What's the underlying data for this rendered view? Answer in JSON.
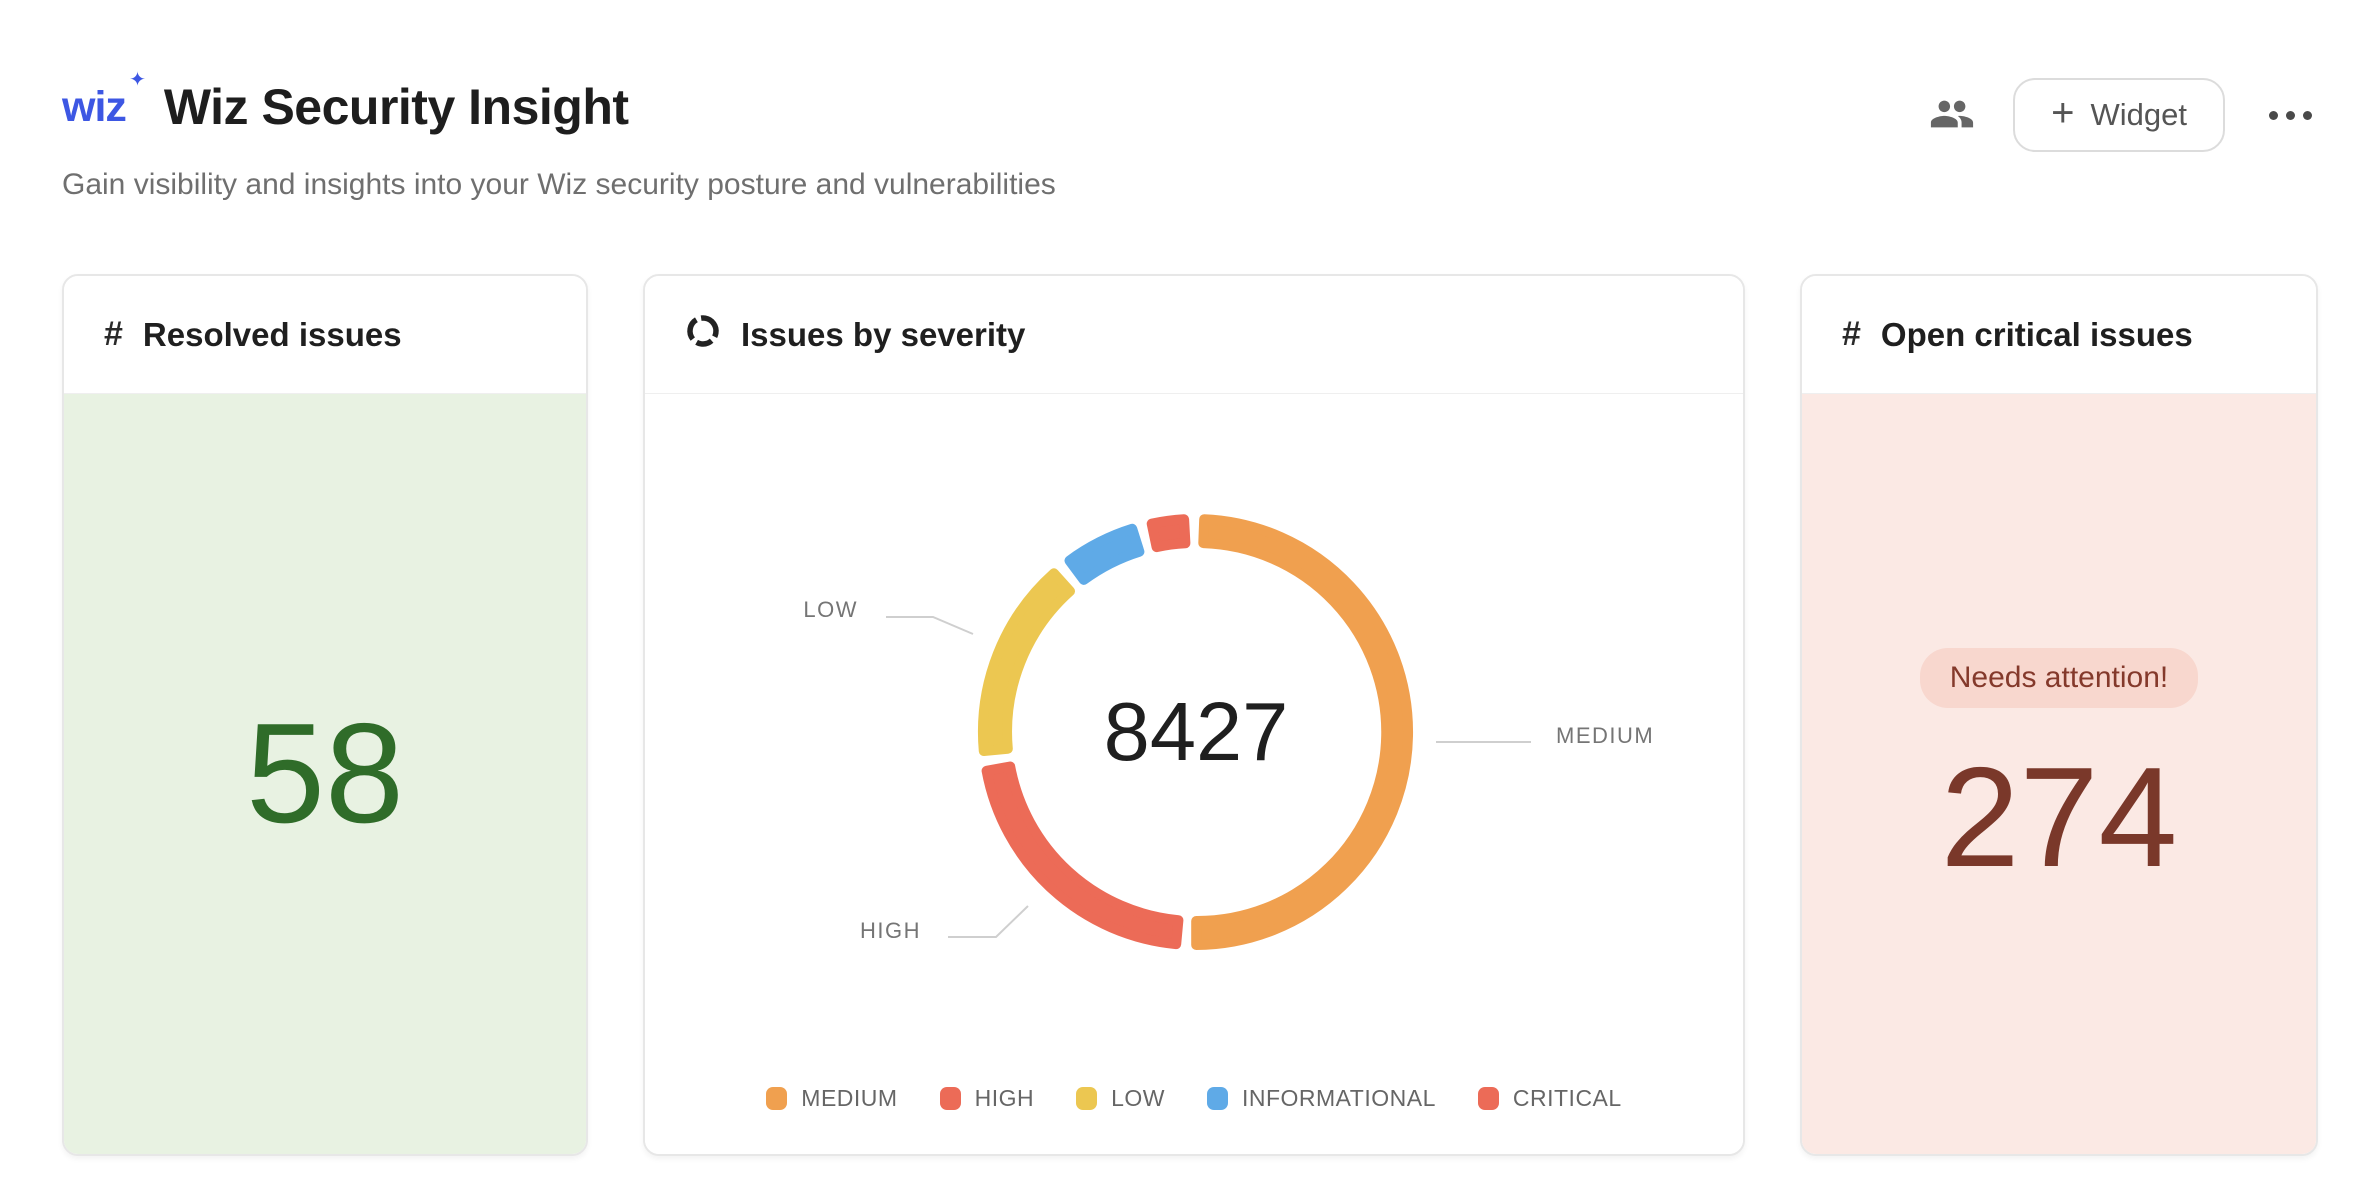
{
  "header": {
    "logo_text": "wiz",
    "logo_sparkle": "✦",
    "title": "Wiz Security Insight",
    "subtitle": "Gain visibility and insights into your Wiz security posture and vulnerabilities",
    "actions": {
      "widget_button_plus": "+",
      "widget_button_label": "Widget"
    }
  },
  "cards": {
    "resolved_issues": {
      "icon": "#",
      "title": "Resolved issues",
      "value": "58",
      "value_color": "#2F6C29",
      "background_color": "#E8F2E2"
    },
    "open_critical_issues": {
      "icon": "#",
      "title": "Open critical issues",
      "badge": "Needs attention!",
      "badge_background": "#F8D7CE",
      "badge_text_color": "#84392B",
      "value": "274",
      "value_color": "#7A382A",
      "background_color": "#FBE9E4"
    }
  },
  "chart_data": {
    "type": "pie",
    "variant": "donut",
    "title": "Issues by severity",
    "center_total": 8427,
    "series": [
      {
        "name": "MEDIUM",
        "value": 4400,
        "color": "#F0A04F"
      },
      {
        "name": "HIGH",
        "value": 1870,
        "color": "#EC6B57"
      },
      {
        "name": "LOW",
        "value": 1360,
        "color": "#ECC751"
      },
      {
        "name": "INFORMATIONAL",
        "value": 523,
        "color": "#5FAAE7"
      },
      {
        "name": "CRITICAL",
        "value": 274,
        "color": "#EC6B57"
      }
    ],
    "values_are_estimates": true,
    "legend_position": "bottom",
    "callouts": {
      "low": "LOW",
      "medium": "MEDIUM",
      "high": "HIGH"
    },
    "start_angle_deg": 1,
    "gap_deg": 3
  }
}
